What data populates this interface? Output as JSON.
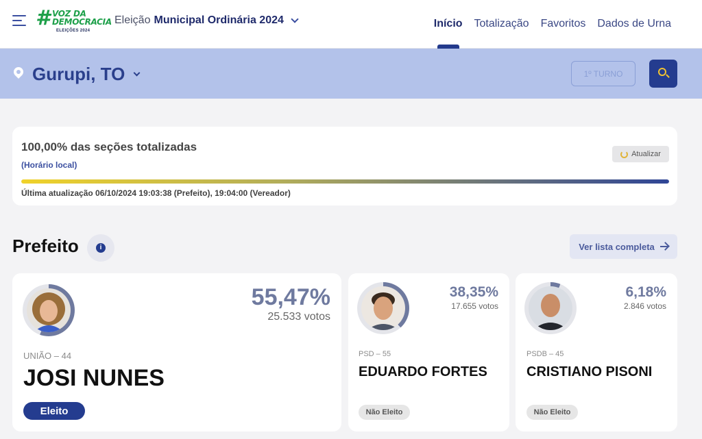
{
  "header": {
    "logo": {
      "line1": "VOZ DA",
      "line2": "DEMOCRACIA",
      "sub": "ELEIÇÕES 2024"
    },
    "election": {
      "prefix": "Eleição",
      "name": "Municipal Ordinária 2024"
    },
    "nav": [
      "Início",
      "Totalização",
      "Favoritos",
      "Dados de Urna"
    ],
    "active_nav": "Início"
  },
  "location": {
    "city": "Gurupi, TO",
    "turno_label": "1º TURNO"
  },
  "progress": {
    "title": "100,00% das seções totalizadas",
    "local_time": "(Horário local)",
    "refresh_label": "Atualizar",
    "percent": 100,
    "last_update": "Última atualização 06/10/2024 19:03:38 (Prefeito), 19:04:00 (Vereador)"
  },
  "section": {
    "title": "Prefeito",
    "info_symbol": "i",
    "full_list_label": "Ver lista completa"
  },
  "candidates": [
    {
      "name": "JOSI NUNES",
      "party": "UNIÃO – 44",
      "percent_text": "55,47%",
      "percent": 55.47,
      "votes": "25.533 votos",
      "status": "Eleito"
    },
    {
      "name": "EDUARDO FORTES",
      "party": "PSD – 55",
      "percent_text": "38,35%",
      "percent": 38.35,
      "votes": "17.655 votos",
      "status": "Não Eleito"
    },
    {
      "name": "CRISTIANO PISONI",
      "party": "PSDB – 45",
      "percent_text": "6,18%",
      "percent": 6.18,
      "votes": "2.846 votos",
      "status": "Não Eleito"
    }
  ],
  "colors": {
    "primary": "#243c8f",
    "band": "#b3c2ea",
    "accent_yellow": "#f1c232",
    "logo_green": "#1ea04a"
  },
  "icons": [
    "menu-icon",
    "chevron-down-icon",
    "location-pin-icon",
    "search-icon",
    "refresh-icon",
    "info-icon",
    "arrow-right-icon"
  ]
}
